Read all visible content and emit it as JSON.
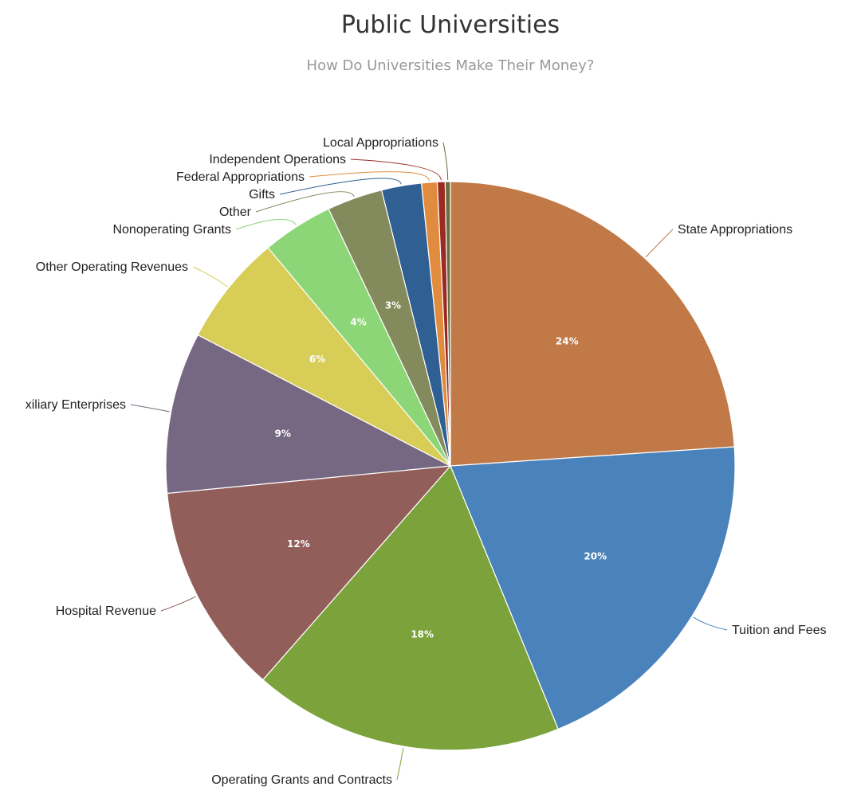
{
  "chart_data": {
    "type": "pie",
    "title": "Public Universities",
    "subtitle": "How Do Universities Make Their Money?",
    "slices": [
      {
        "label": "State Appropriations",
        "value": 24.3,
        "display": "24%",
        "color": "#c07947"
      },
      {
        "label": "Tuition and Fees",
        "value": 20.2,
        "display": "20%",
        "color": "#4a82bb"
      },
      {
        "label": "Operating Grants and Contracts",
        "value": 17.9,
        "display": "18%",
        "color": "#7ba23b"
      },
      {
        "label": "Hospital Revenue",
        "value": 12.2,
        "display": "12%",
        "color": "#925e5a"
      },
      {
        "label": "xiliary Enterprises",
        "value": 9.3,
        "display": "9%",
        "color": "#766882"
      },
      {
        "label": "Other Operating Revenues",
        "value": 6.4,
        "display": "6%",
        "color": "#d8cd56"
      },
      {
        "label": "Nonoperating Grants",
        "value": 4.1,
        "display": "4%",
        "color": "#8dd677"
      },
      {
        "label": "Other",
        "value": 3.2,
        "display": "3%",
        "color": "#838a5c"
      },
      {
        "label": "Gifts",
        "value": 2.3,
        "display": "",
        "color": "#2f5f93"
      },
      {
        "label": "Federal Appropriations",
        "value": 0.9,
        "display": "",
        "color": "#e08b3e"
      },
      {
        "label": "Independent Operations",
        "value": 0.45,
        "display": "",
        "color": "#9a2a22"
      },
      {
        "label": "Local Appropriations",
        "value": 0.3,
        "display": "",
        "color": "#6e6b3c"
      }
    ]
  }
}
